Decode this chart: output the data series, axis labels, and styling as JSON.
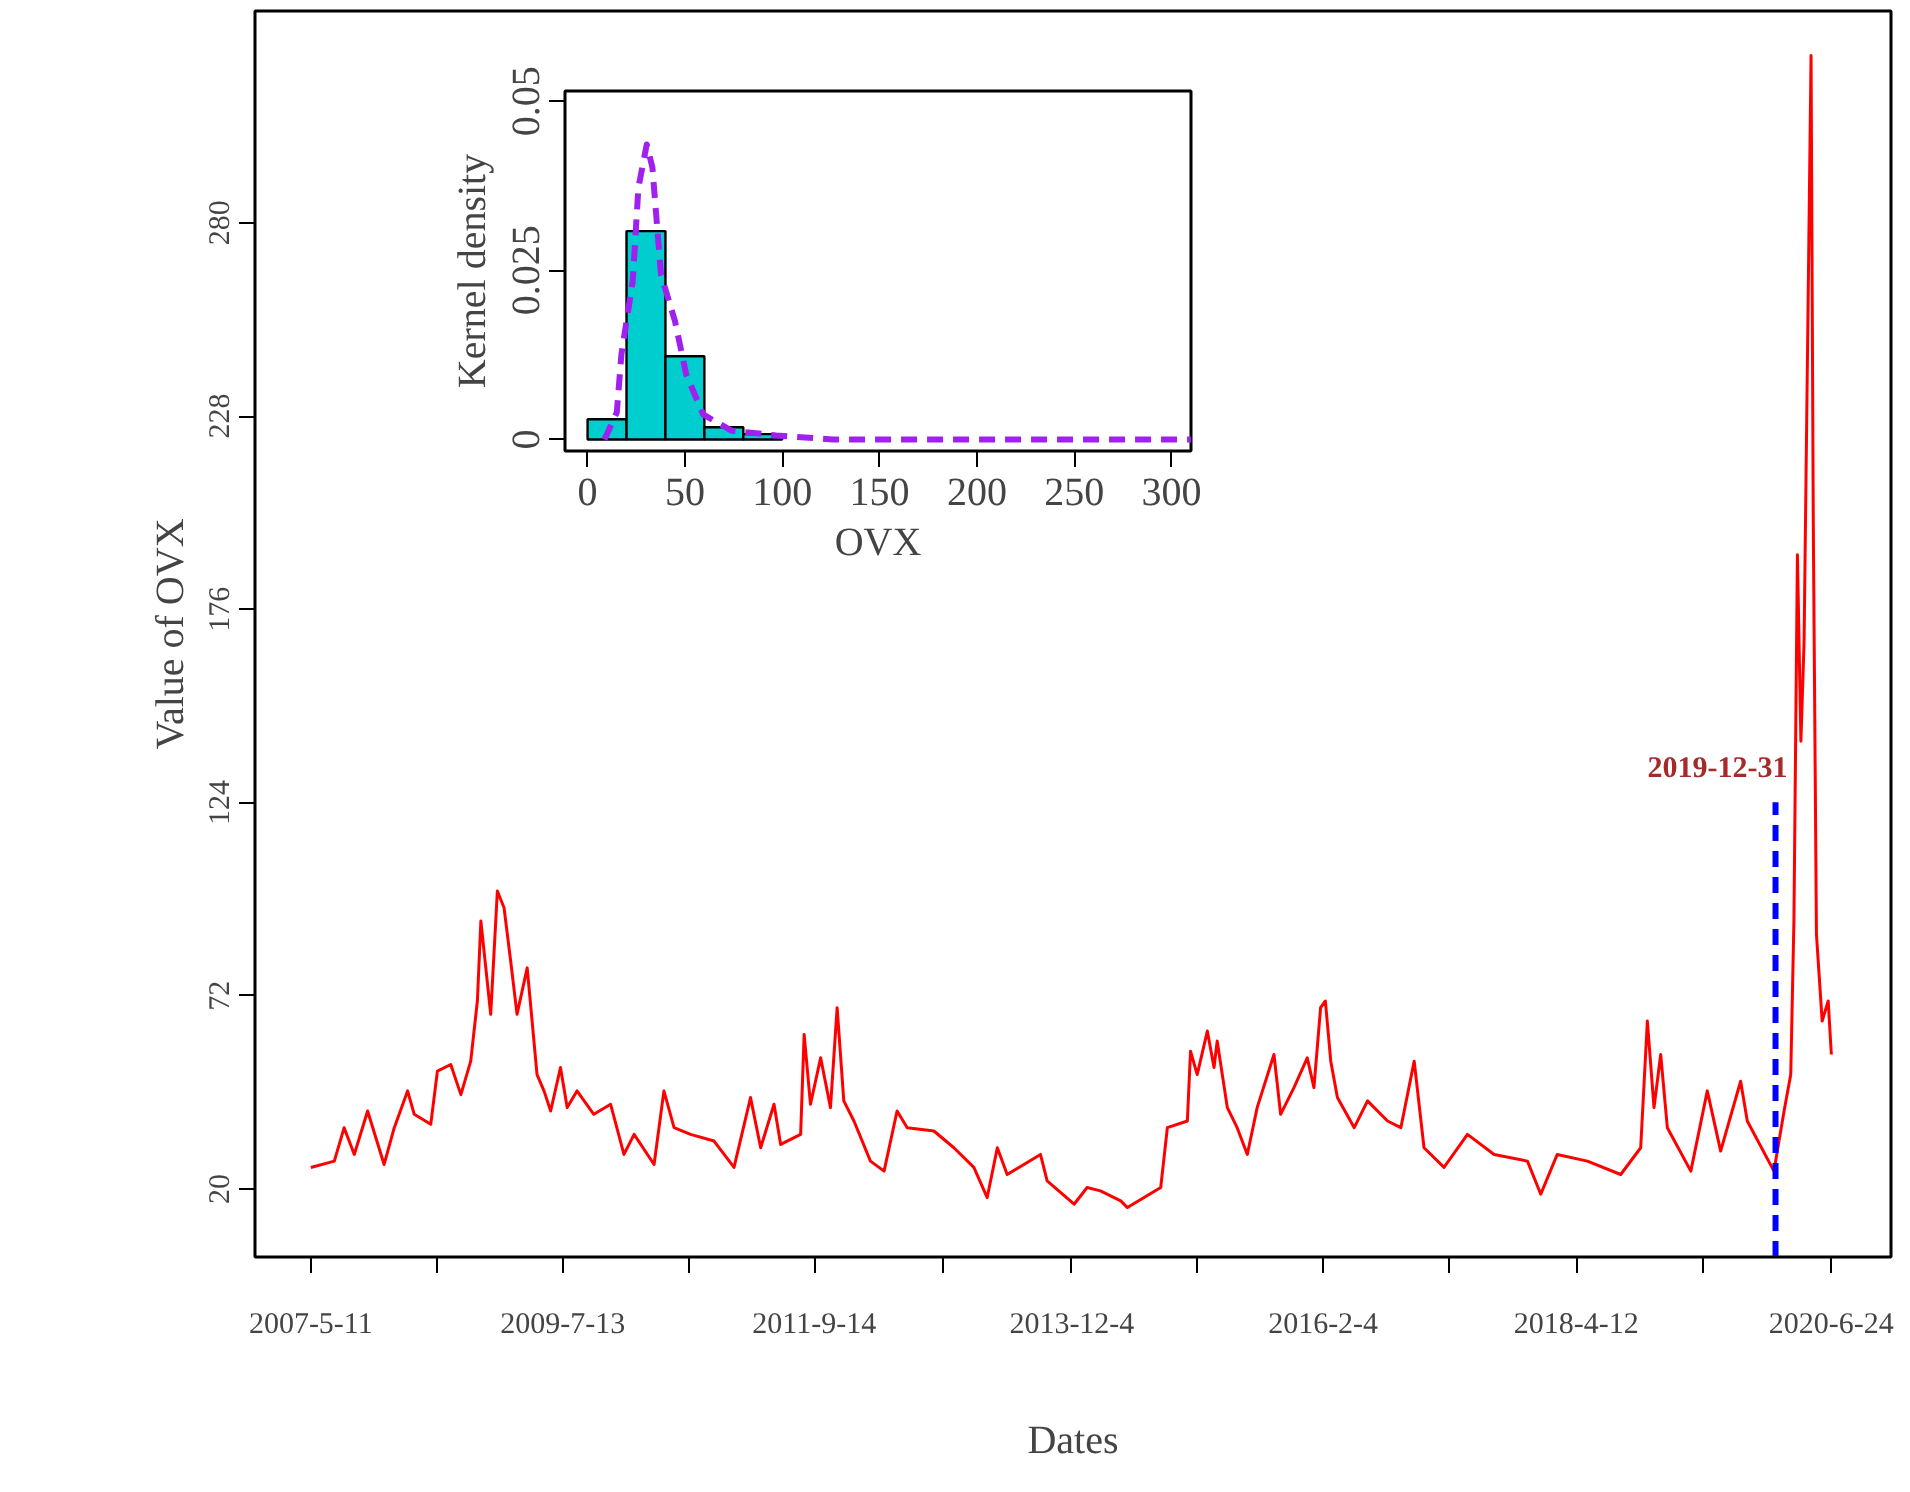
{
  "chart_data": [
    {
      "type": "line",
      "xlabel": "Dates",
      "ylabel": "Value of OVX",
      "xlim": [
        "2006-11-16",
        "2020-12-29"
      ],
      "ylim": [
        1.7,
        337
      ],
      "xticks": [
        {
          "value": "2007-05-11",
          "label": "2007-5-11"
        },
        {
          "value": "2008-06-11",
          "label": null
        },
        {
          "value": "2009-07-13",
          "label": "2009-7-13"
        },
        {
          "value": "2010-08-13",
          "label": null
        },
        {
          "value": "2011-09-14",
          "label": "2011-9-14"
        },
        {
          "value": "2012-10-24",
          "label": null
        },
        {
          "value": "2013-12-04",
          "label": "2013-12-4"
        },
        {
          "value": "2015-01-04",
          "label": null
        },
        {
          "value": "2016-02-04",
          "label": "2016-2-4"
        },
        {
          "value": "2017-03-09",
          "label": null
        },
        {
          "value": "2018-04-12",
          "label": "2018-4-12"
        },
        {
          "value": "2019-05-18",
          "label": null
        },
        {
          "value": "2020-06-24",
          "label": "2020-6-24"
        }
      ],
      "yticks": [
        20,
        72,
        124,
        176,
        228,
        280
      ],
      "x": [
        "2007-05-11",
        "2007-07-24",
        "2007-08-24",
        "2007-09-25",
        "2007-11-06",
        "2007-12-28",
        "2008-01-29",
        "2008-03-11",
        "2008-04-01",
        "2008-05-23",
        "2008-06-13",
        "2008-07-25",
        "2008-08-26",
        "2008-09-26",
        "2008-10-17",
        "2008-10-28",
        "2008-11-28",
        "2008-12-19",
        "2009-01-09",
        "2009-01-30",
        "2009-02-19",
        "2009-03-23",
        "2009-04-23",
        "2009-05-15",
        "2009-06-05",
        "2009-07-06",
        "2009-07-27",
        "2009-08-27",
        "2009-10-19",
        "2009-12-11",
        "2010-01-22",
        "2010-02-23",
        "2010-04-27",
        "2010-05-28",
        "2010-06-29",
        "2010-08-20",
        "2010-11-02",
        "2011-01-04",
        "2011-02-25",
        "2011-03-29",
        "2011-05-10",
        "2011-05-31",
        "2011-08-02",
        "2011-08-13",
        "2011-09-02",
        "2011-10-04",
        "2011-11-04",
        "2011-11-25",
        "2011-12-16",
        "2012-01-17",
        "2012-03-09",
        "2012-04-21",
        "2012-06-01",
        "2012-07-03",
        "2012-09-25",
        "2012-11-27",
        "2013-01-29",
        "2013-03-12",
        "2013-04-13",
        "2013-05-14",
        "2013-08-27",
        "2013-09-17",
        "2013-12-11",
        "2014-01-21",
        "2014-03-04",
        "2014-05-07",
        "2014-05-28",
        "2014-09-10",
        "2014-10-01",
        "2014-12-03",
        "2014-12-13",
        "2015-01-03",
        "2015-02-04",
        "2015-02-25",
        "2015-03-07",
        "2015-04-08",
        "2015-05-09",
        "2015-06-10",
        "2015-07-11",
        "2015-09-02",
        "2015-09-23",
        "2015-11-04",
        "2015-12-16",
        "2016-01-06",
        "2016-01-27",
        "2016-02-11",
        "2016-02-28",
        "2016-03-20",
        "2016-05-12",
        "2016-06-23",
        "2016-08-25",
        "2016-10-06",
        "2016-11-17",
        "2016-12-18",
        "2017-02-19",
        "2017-05-04",
        "2017-07-27",
        "2017-11-09",
        "2017-12-21",
        "2018-02-11",
        "2018-05-17",
        "2018-08-30",
        "2018-11-01",
        "2018-11-22",
        "2018-12-13",
        "2019-01-03",
        "2019-01-24",
        "2019-04-08",
        "2019-05-30",
        "2019-07-11",
        "2019-09-12",
        "2019-10-03",
        "2019-12-26",
        "2020-01-27",
        "2020-02-17",
        "2020-02-27",
        "2020-03-09",
        "2020-03-20",
        "2020-03-30",
        "2020-04-21",
        "2020-04-28",
        "2020-05-08",
        "2020-05-26",
        "2020-06-14",
        "2020-06-24"
      ],
      "series": [
        {
          "color": "#ff0000",
          "values": [
            25.8,
            27.5,
            36.5,
            29.3,
            41.0,
            26.6,
            36.5,
            46.4,
            40.1,
            37.4,
            51.7,
            53.5,
            45.4,
            54.4,
            70.6,
            92.1,
            67.0,
            100.2,
            95.7,
            81.3,
            67.0,
            79.5,
            50.8,
            46.4,
            41.0,
            52.7,
            41.9,
            46.4,
            40.1,
            42.8,
            29.3,
            34.7,
            26.6,
            46.4,
            36.5,
            34.7,
            32.9,
            25.8,
            44.6,
            31.1,
            42.8,
            32.0,
            34.7,
            61.6,
            42.8,
            55.3,
            41.9,
            68.8,
            43.7,
            38.3,
            27.5,
            24.8,
            41.0,
            36.5,
            35.6,
            31.1,
            25.8,
            17.7,
            31.1,
            23.9,
            29.3,
            22.2,
            15.9,
            20.4,
            19.5,
            16.8,
            15.0,
            20.4,
            36.5,
            38.3,
            57.1,
            50.8,
            62.5,
            52.7,
            59.8,
            41.9,
            36.5,
            29.3,
            41.9,
            56.2,
            40.1,
            47.3,
            55.3,
            47.3,
            68.8,
            70.6,
            54.4,
            44.6,
            36.5,
            43.7,
            38.3,
            36.5,
            54.4,
            31.1,
            25.8,
            34.7,
            29.3,
            27.5,
            18.6,
            29.3,
            27.5,
            23.9,
            31.1,
            65.2,
            41.9,
            56.2,
            36.5,
            24.8,
            46.4,
            30.2,
            49.0,
            38.3,
            24.8,
            41.0,
            50.8,
            92.1,
            190.7,
            140.5,
            167.4,
            325,
            199.7,
            88.5,
            65.2,
            70.6,
            56.2
          ]
        }
      ],
      "ref_lines": [
        {
          "axis": "x",
          "value": "2019-12-31",
          "label": "2019-12-31",
          "color": "#0000ff",
          "line_style": "dashed"
        }
      ]
    },
    {
      "type": "histogram",
      "xlabel": "OVX",
      "ylabel": "Kernel density",
      "xlim": [
        -11.6,
        310
      ],
      "ylim": [
        -0.0017,
        0.0515
      ],
      "xticks": [
        0,
        50,
        100,
        150,
        200,
        250,
        300
      ],
      "yticks": [
        0,
        0.025,
        0.05
      ],
      "bins": [
        0,
        20,
        40,
        60,
        80,
        100
      ],
      "values": [
        0.003,
        0.0308,
        0.0123,
        0.0018,
        0.0008
      ],
      "color": "#00cdcd",
      "series": [
        {
          "type": "line",
          "color": "#a020f0",
          "line_style": "dashed",
          "x": [
            8.7,
            15,
            17.4,
            23.2,
            26.1,
            30.4,
            33.3,
            37.7,
            44.9,
            50.7,
            59.4,
            73.9,
            97,
            126,
            200,
            310
          ],
          "values": [
            0,
            0.004,
            0.0126,
            0.0234,
            0.0372,
            0.0436,
            0.0402,
            0.0244,
            0.0175,
            0.0096,
            0.0037,
            0.0013,
            0.0006,
            0,
            0,
            0
          ]
        }
      ]
    }
  ]
}
